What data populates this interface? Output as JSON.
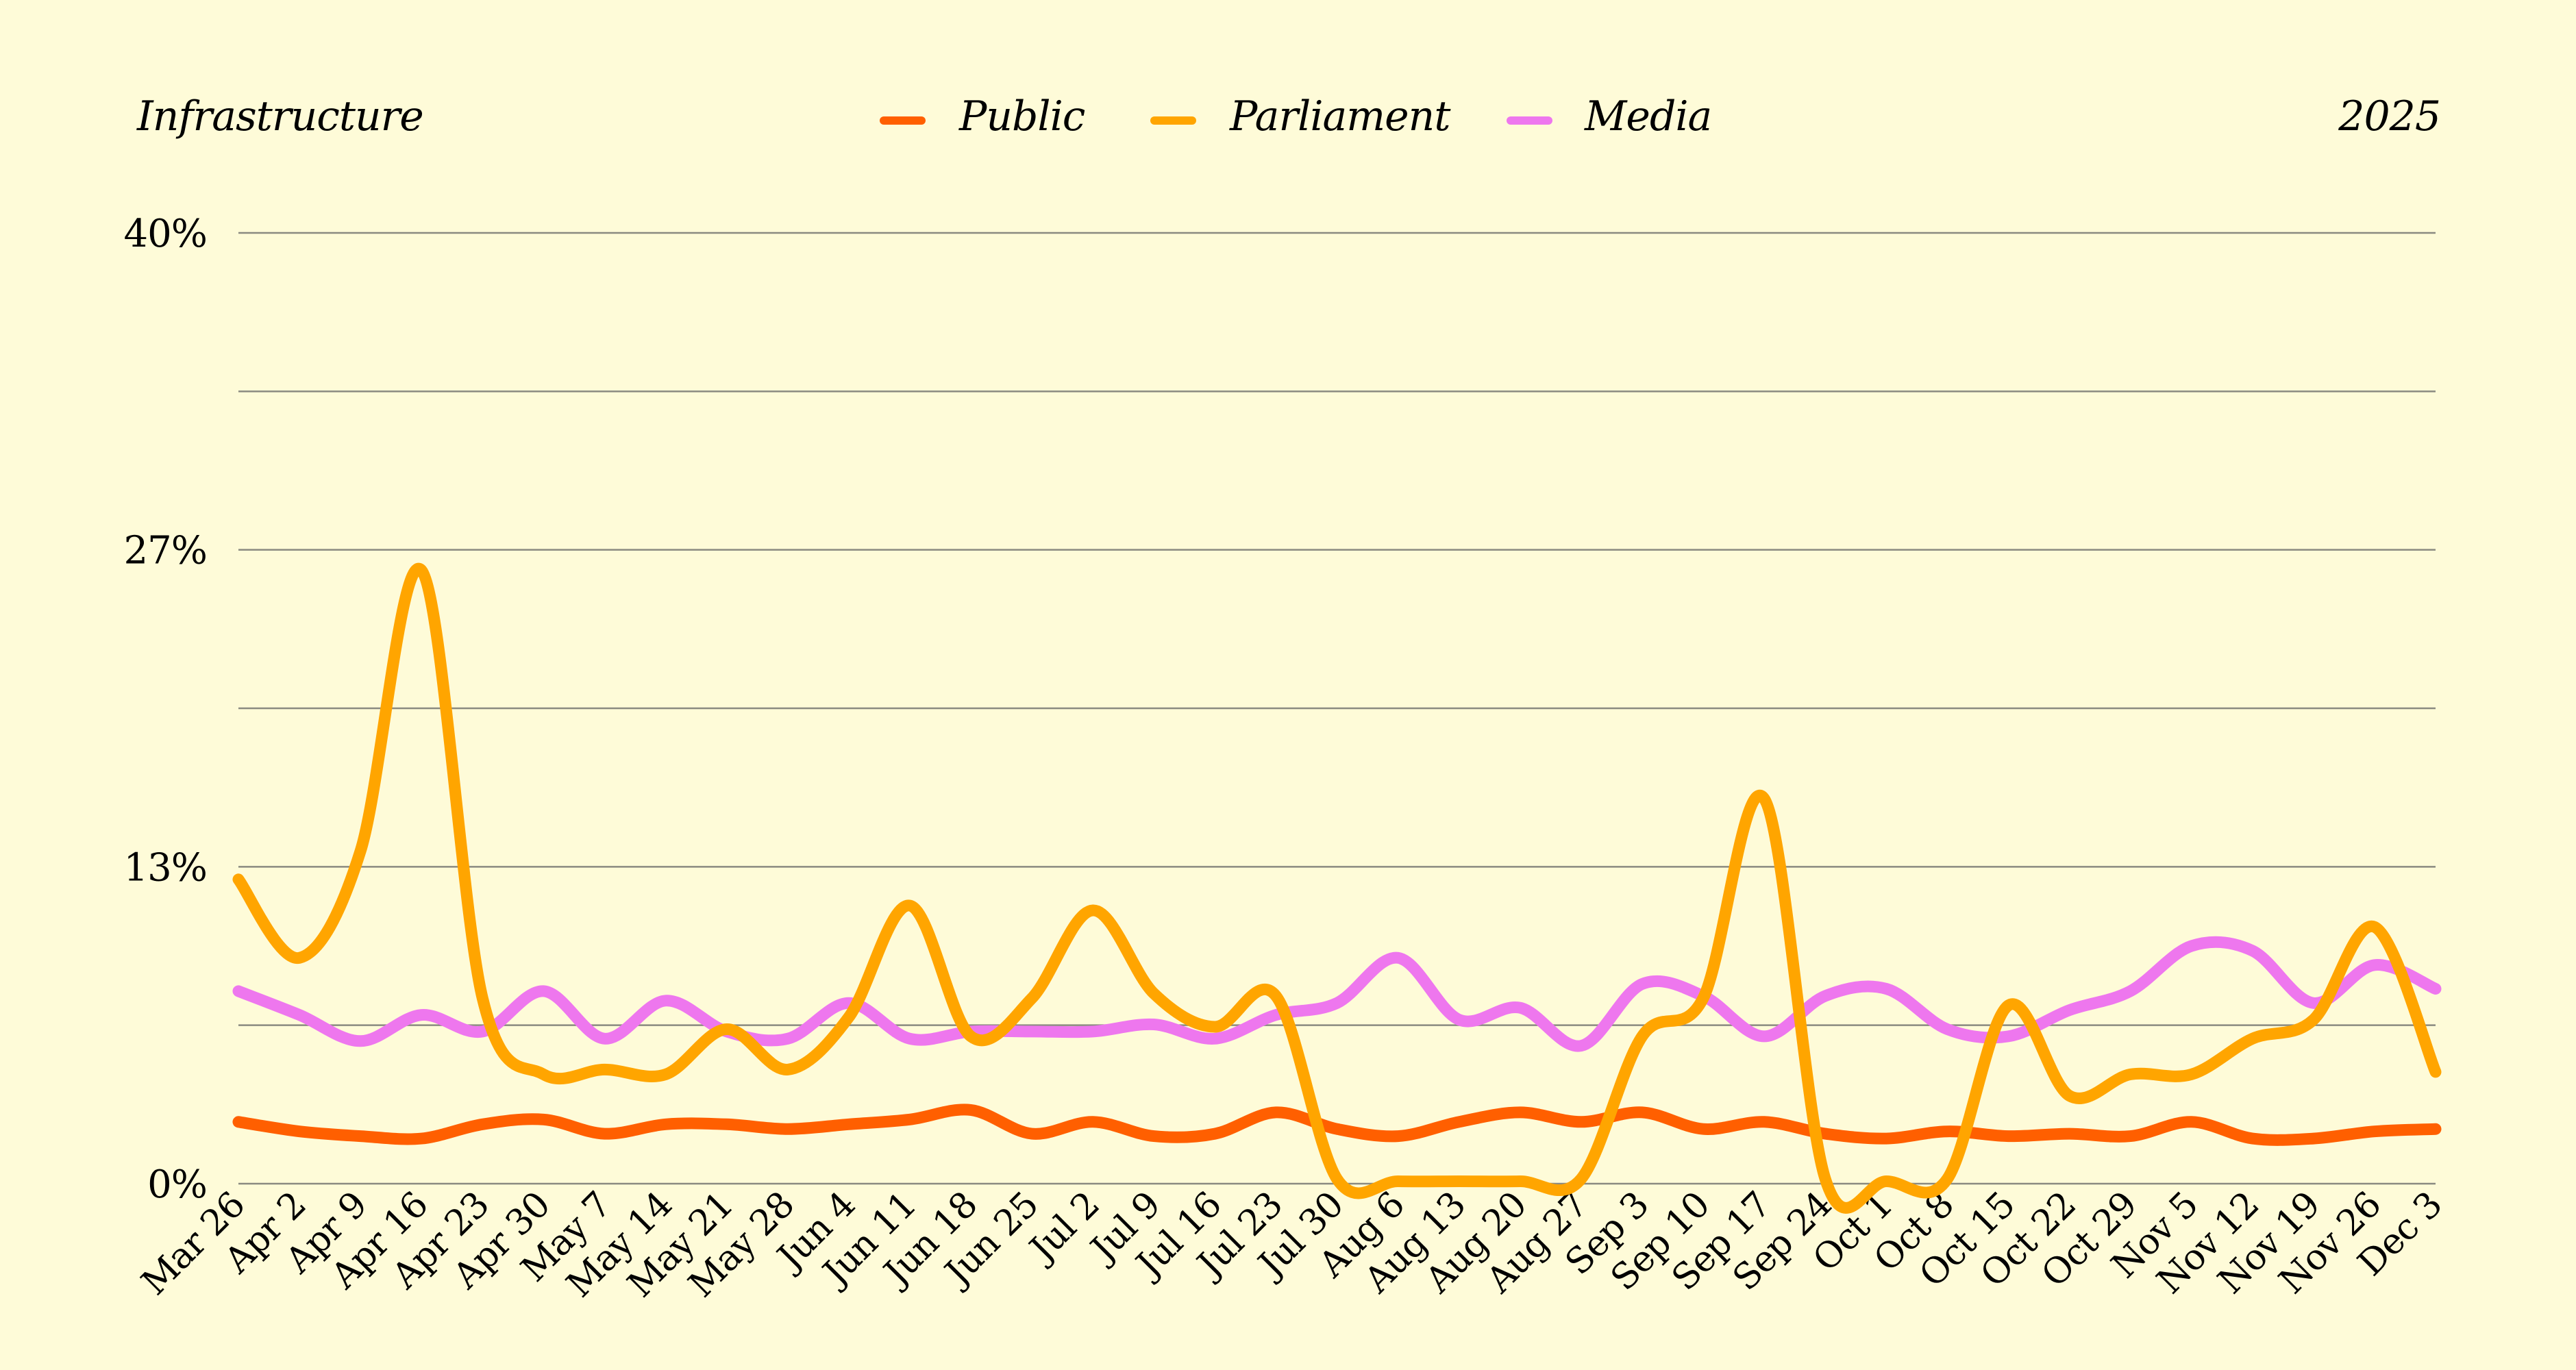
{
  "chart_data": {
    "type": "line",
    "title": "Infrastructure",
    "subtitle": "2025",
    "ylim": [
      0,
      40
    ],
    "yticks": [
      "0%",
      "13%",
      "27%",
      "40%"
    ],
    "grid": true,
    "legend_position": "top-center",
    "categories": [
      "Mar 26",
      "Apr 2",
      "Apr 9",
      "Apr 16",
      "Apr 23",
      "Apr 30",
      "May 7",
      "May 14",
      "May 21",
      "May 28",
      "Jun 4",
      "Jun 11",
      "Jun 18",
      "Jun 25",
      "Jul 2",
      "Jul 9",
      "Jul 16",
      "Jul 23",
      "Jul 30",
      "Aug 6",
      "Aug 13",
      "Aug 20",
      "Aug 27",
      "Sep 3",
      "Sep 10",
      "Sep 17",
      "Sep 24",
      "Oct 1",
      "Oct 8",
      "Oct 15",
      "Oct 22",
      "Oct 29",
      "Nov 5",
      "Nov 12",
      "Nov 19",
      "Nov 26",
      "Dec 3"
    ],
    "series": [
      {
        "name": "Public",
        "color": "#FF5F00",
        "values": [
          2.6,
          2.2,
          2.0,
          1.9,
          2.5,
          2.7,
          2.1,
          2.5,
          2.5,
          2.3,
          2.5,
          2.7,
          3.1,
          2.1,
          2.6,
          2.0,
          2.1,
          3.0,
          2.3,
          2.0,
          2.6,
          3.0,
          2.6,
          3.0,
          2.3,
          2.6,
          2.1,
          1.9,
          2.2,
          2.0,
          2.1,
          2.0,
          2.6,
          1.9,
          1.9,
          2.2,
          2.3
        ]
      },
      {
        "name": "Parliament",
        "color": "#FFA500",
        "values": [
          12.8,
          9.5,
          14.0,
          25.8,
          7.8,
          4.6,
          4.8,
          4.6,
          6.5,
          4.8,
          7.0,
          11.7,
          6.2,
          7.8,
          11.5,
          8.0,
          6.6,
          7.9,
          0.2,
          0.1,
          0.1,
          0.1,
          0.2,
          6.2,
          7.8,
          16.2,
          0.2,
          0.1,
          0.2,
          7.5,
          3.7,
          4.6,
          4.6,
          6.1,
          6.9,
          10.8,
          4.7
        ]
      },
      {
        "name": "Media",
        "color": "#EE77EE",
        "values": [
          8.1,
          7.1,
          6.0,
          7.1,
          6.4,
          8.1,
          6.1,
          7.7,
          6.4,
          6.1,
          7.6,
          6.1,
          6.4,
          6.4,
          6.4,
          6.7,
          6.1,
          7.1,
          7.6,
          9.5,
          6.9,
          7.4,
          5.8,
          8.4,
          7.9,
          6.2,
          7.9,
          8.2,
          6.5,
          6.2,
          7.3,
          8.1,
          10.0,
          9.8,
          7.6,
          9.2,
          8.2
        ]
      }
    ]
  }
}
